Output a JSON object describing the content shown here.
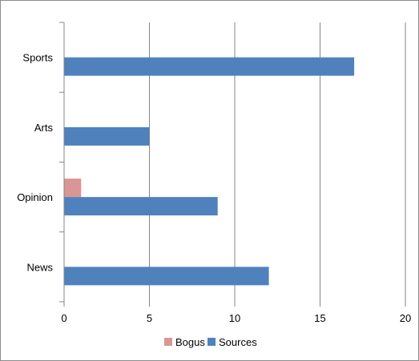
{
  "chart_data": {
    "type": "bar",
    "orientation": "horizontal",
    "categories": [
      "News",
      "Opinion",
      "Arts",
      "Sports"
    ],
    "series": [
      {
        "name": "Bogus",
        "values": [
          0,
          1,
          0,
          0
        ],
        "color": "#d99694"
      },
      {
        "name": "Sources",
        "values": [
          12,
          9,
          5,
          17
        ],
        "color": "#4f81bd"
      }
    ],
    "xlim": [
      0,
      20
    ],
    "xticks": [
      0,
      5,
      10,
      15,
      20
    ],
    "grid": "vertical",
    "legend": "bottom",
    "title": "",
    "xlabel": "",
    "ylabel": ""
  }
}
